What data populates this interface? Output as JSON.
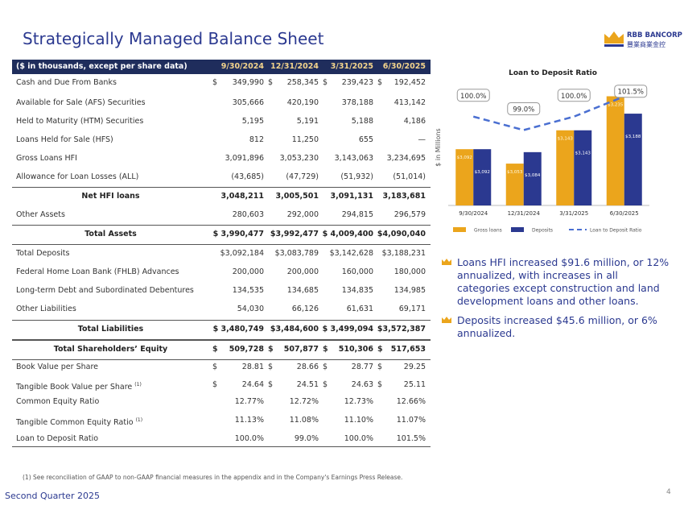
{
  "header": {
    "title": "Strategically Managed Balance Sheet",
    "logo_name": "RBB BANCORP",
    "logo_sub": "豐業商業金控"
  },
  "table": {
    "header_label": "($ in thousands, except per share data)",
    "columns": [
      "9/30/2024",
      "12/31/2024",
      "3/31/2025",
      "6/30/2025"
    ],
    "currency": "$",
    "rows": [
      {
        "label": "Cash and Due From Banks",
        "values": [
          "349,990",
          "258,345",
          "239,423",
          "192,452"
        ],
        "dollar": true
      },
      {
        "label": "Available for Sale (AFS) Securities",
        "values": [
          "305,666",
          "420,190",
          "378,188",
          "413,142"
        ]
      },
      {
        "label": "Held to Maturity (HTM) Securities",
        "values": [
          "5,195",
          "5,191",
          "5,188",
          "4,186"
        ]
      },
      {
        "label": "Loans Held for Sale (HFS)",
        "values": [
          "812",
          "11,250",
          "655",
          "—"
        ]
      },
      {
        "label": "Gross Loans HFI",
        "values": [
          "3,091,896",
          "3,053,230",
          "3,143,063",
          "3,234,695"
        ]
      },
      {
        "label": "Allowance for Loan Losses (ALL)",
        "values": [
          "(43,685)",
          "(47,729)",
          "(51,932)",
          "(51,014)"
        ]
      },
      {
        "label": "Net HFI loans",
        "values": [
          "3,048,211",
          "3,005,501",
          "3,091,131",
          "3,183,681"
        ],
        "bold": true
      },
      {
        "label": "Other Assets",
        "values": [
          "280,603",
          "292,000",
          "294,815",
          "296,579"
        ]
      },
      {
        "label": "Total Assets",
        "values": [
          "$ 3,990,477",
          "$3,992,477",
          "$ 4,009,400",
          "$4,090,040"
        ],
        "bold": true,
        "total": true
      },
      {
        "label": "Total Deposits",
        "values": [
          "$3,092,184",
          "$3,083,789",
          "$3,142,628",
          "$3,188,231"
        ]
      },
      {
        "label": "Federal Home Loan Bank (FHLB) Advances",
        "values": [
          "200,000",
          "200,000",
          "160,000",
          "180,000"
        ]
      },
      {
        "label": "Long-term Debt and Subordinated Debentures",
        "values": [
          "134,535",
          "134,685",
          "134,835",
          "134,985"
        ]
      },
      {
        "label": "Other Liabilities",
        "values": [
          "54,030",
          "66,126",
          "61,631",
          "69,171"
        ]
      },
      {
        "label": "Total Liabilities",
        "values": [
          "$ 3,480,749",
          "$3,484,600",
          "$ 3,499,094",
          "$3,572,387"
        ],
        "bold": true,
        "total": true
      },
      {
        "label": "Total Shareholders’ Equity",
        "values": [
          "509,728",
          "507,877",
          "510,306",
          "517,653"
        ],
        "bold": true,
        "total": true,
        "dollar": true
      },
      {
        "label": "Book Value per Share",
        "values": [
          "28.81",
          "28.66",
          "28.77",
          "29.25"
        ],
        "dollar": true
      },
      {
        "label": "Tangible Book Value per Share",
        "note": "(1)",
        "values": [
          "24.64",
          "24.51",
          "24.63",
          "25.11"
        ],
        "dollar": true
      },
      {
        "label": "Common Equity Ratio",
        "values": [
          "12.77%",
          "12.72%",
          "12.73%",
          "12.66%"
        ]
      },
      {
        "label": "Tangible Common Equity Ratio",
        "note": "(1)",
        "values": [
          "11.13%",
          "11.08%",
          "11.10%",
          "11.07%"
        ]
      },
      {
        "label": "Loan to Deposit Ratio",
        "values": [
          "100.0%",
          "99.0%",
          "100.0%",
          "101.5%"
        ]
      }
    ]
  },
  "chart_data": {
    "type": "bar",
    "title": "Loan to Deposit Ratio",
    "y_label": "$ in Millions",
    "categories": [
      "9/30/2024",
      "12/31/2024",
      "3/31/2025",
      "6/30/2025"
    ],
    "ylim": [
      2940,
      3260
    ],
    "y2lim": [
      93.4,
      102.2
    ],
    "series": [
      {
        "name": "Gross loans",
        "color": "#eba51c",
        "values": [
          3092,
          3053,
          3143,
          3235
        ],
        "value_labels": [
          "$3,092",
          "$3,053",
          "$3,143",
          "$3,235"
        ]
      },
      {
        "name": "Deposits",
        "color": "#2b3990",
        "values": [
          3092,
          3084,
          3143,
          3188
        ],
        "value_labels": [
          "$3,092",
          "$3,084",
          "$3,143",
          "$3,188"
        ]
      },
      {
        "name": "Loan to Deposit Ratio",
        "type": "line",
        "axis": "y2",
        "color": "#4a6fd1",
        "values": [
          100.0,
          99.0,
          100.0,
          101.5
        ],
        "value_labels": [
          "100.0%",
          "99.0%",
          "100.0%",
          "101.5%"
        ]
      }
    ]
  },
  "bullets": [
    "Loans HFI increased $91.6 million, or 12% annualized, with increases in all categories except construction and land development loans and other loans.",
    "Deposits increased $45.6 million, or 6% annualized."
  ],
  "footer": {
    "note": "(1) See reconciliation of GAAP to non-GAAP financial measures in the appendix and in the Company's Earnings Press Release.",
    "period": "Second Quarter 2025",
    "page": "4"
  }
}
